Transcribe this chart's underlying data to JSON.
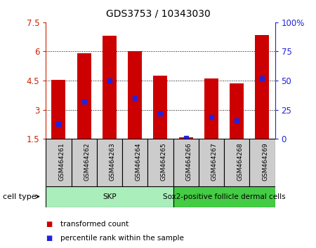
{
  "title": "GDS3753 / 10343030",
  "samples": [
    "GSM464261",
    "GSM464262",
    "GSM464263",
    "GSM464264",
    "GSM464265",
    "GSM464266",
    "GSM464267",
    "GSM464268",
    "GSM464269"
  ],
  "transformed_counts": [
    4.55,
    5.9,
    6.8,
    6.0,
    4.75,
    1.57,
    4.6,
    4.35,
    6.85
  ],
  "percentile_ranks": [
    13,
    32,
    50,
    35,
    22,
    1,
    19,
    16,
    52
  ],
  "bar_bottom": 1.5,
  "ylim_left": [
    1.5,
    7.5
  ],
  "ylim_right": [
    0,
    100
  ],
  "yticks_left": [
    1.5,
    3.0,
    4.5,
    6.0,
    7.5
  ],
  "ytick_labels_left": [
    "1.5",
    "3",
    "4.5",
    "6",
    "7.5"
  ],
  "yticks_right": [
    0,
    25,
    50,
    75,
    100
  ],
  "ytick_labels_right": [
    "0",
    "25",
    "50",
    "75",
    "100%"
  ],
  "bar_color": "#CC0000",
  "percentile_color": "#2222DD",
  "bar_width": 0.55,
  "grid_lines": [
    3.0,
    4.5,
    6.0
  ],
  "cell_types": [
    {
      "label": "SKP",
      "start": 0,
      "end": 4,
      "color": "#AAEEBB"
    },
    {
      "label": "Sox2-positive follicle dermal cells",
      "start": 5,
      "end": 8,
      "color": "#44CC44"
    }
  ],
  "cell_type_label": "cell type",
  "legend_items": [
    {
      "label": "transformed count",
      "color": "#CC0000"
    },
    {
      "label": "percentile rank within the sample",
      "color": "#2222DD"
    }
  ],
  "bg_color": "#FFFFFF",
  "tick_label_color_left": "#CC2200",
  "tick_label_color_right": "#2222DD",
  "sample_bg_color": "#CCCCCC"
}
